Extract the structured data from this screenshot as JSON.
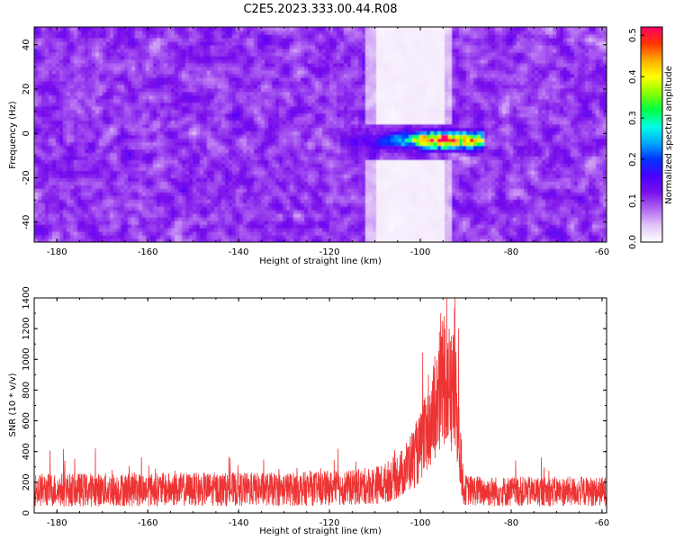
{
  "title": "C2E5.2023.333.00.44.R08",
  "colors": {
    "snr_line": "#ee3333"
  },
  "chart_data": [
    {
      "type": "heatmap",
      "xlabel": "Height of straight line (km)",
      "ylabel": "Frequency (Hz)",
      "xlim": [
        -185,
        -59
      ],
      "ylim": [
        -49,
        48
      ],
      "xticks": [
        -180,
        -160,
        -140,
        -120,
        -100,
        -80,
        -60
      ],
      "yticks": [
        -40,
        -20,
        0,
        20,
        40
      ],
      "colorbar": {
        "label": "Normalized spectral amplitude",
        "range": [
          0,
          0.52
        ],
        "ticks": [
          0.0,
          0.1,
          0.2,
          0.3,
          0.4,
          0.5
        ],
        "colormap": [
          "#ffffff",
          "#e2c6f7",
          "#b066f2",
          "#7a10ea",
          "#4a00ff",
          "#0033ff",
          "#00aaff",
          "#00ffe0",
          "#00ff44",
          "#88ff00",
          "#ffff00",
          "#ffaa00",
          "#ff3300",
          "#ff0066"
        ]
      },
      "background_level": 0.06,
      "gap_regions": [
        {
          "x": [
            -112,
            -93
          ],
          "y_above": 5,
          "y_below": -12
        }
      ],
      "features": [
        {
          "x_range": [
            -118,
            -86
          ],
          "y": -3,
          "y_halfwidth": 4,
          "peak": 0.5,
          "peak_x": -94,
          "description_value": "band"
        }
      ]
    },
    {
      "type": "line",
      "xlabel": "Height of straight line (km)",
      "ylabel": "SNR (10 * v/v)",
      "xlim": [
        -185,
        -59
      ],
      "ylim": [
        0,
        1400
      ],
      "xticks": [
        -180,
        -160,
        -140,
        -120,
        -100,
        -80,
        -60
      ],
      "yticks": [
        0,
        200,
        400,
        600,
        800,
        1000,
        1200,
        1400
      ],
      "series": [
        {
          "baseline_x": [
            -185,
            -130,
            -115,
            -108,
            -104,
            -100,
            -97,
            -95,
            -93,
            -92,
            -90.5,
            -85,
            -59
          ],
          "baseline_center": [
            150,
            155,
            165,
            190,
            260,
            420,
            650,
            900,
            800,
            650,
            150,
            140,
            140
          ],
          "baseline_spread": [
            110,
            110,
            115,
            130,
            160,
            230,
            320,
            420,
            420,
            380,
            100,
            100,
            95
          ],
          "peaks": [
            {
              "x": -98.2,
              "y": 900
            },
            {
              "x": -96.8,
              "y": 1020
            },
            {
              "x": -95.8,
              "y": 1180
            },
            {
              "x": -94.8,
              "y": 1280
            },
            {
              "x": -94.2,
              "y": 1400
            },
            {
              "x": -93.2,
              "y": 1150
            },
            {
              "x": -92.4,
              "y": 1400
            },
            {
              "x": -91.6,
              "y": 1200
            }
          ]
        }
      ]
    }
  ]
}
